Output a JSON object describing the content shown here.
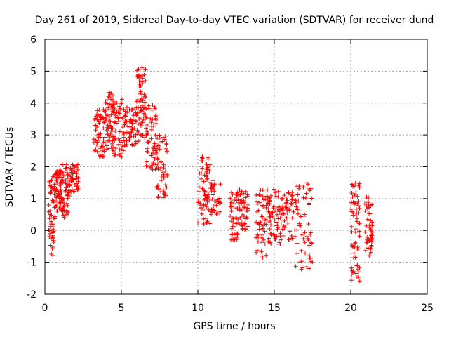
{
  "chart_data": {
    "type": "scatter",
    "title": "Day 261 of 2019, Sidereal Day-to-day VTEC variation (SDTVAR) for receiver dund",
    "xlabel": "GPS time / hours",
    "ylabel": "SDTVAR / TECUs",
    "xlim": [
      0,
      25
    ],
    "ylim": [
      -2,
      6
    ],
    "x_ticks": [
      0,
      5,
      10,
      15,
      20,
      25
    ],
    "y_ticks": [
      -2,
      -1,
      0,
      1,
      2,
      3,
      4,
      5,
      6
    ],
    "grid": true,
    "marker": "plus",
    "color": "#ff0000",
    "clusters": [
      {
        "x0": 0.25,
        "x1": 0.65,
        "lo": -0.8,
        "hi": 1.7,
        "n": 60
      },
      {
        "x0": 0.6,
        "x1": 1.2,
        "lo": 0.6,
        "hi": 1.9,
        "n": 70
      },
      {
        "x0": 1.1,
        "x1": 1.6,
        "lo": 0.4,
        "hi": 2.1,
        "n": 60
      },
      {
        "x0": 1.6,
        "x1": 2.2,
        "lo": 1.2,
        "hi": 2.1,
        "n": 50
      },
      {
        "x0": 3.2,
        "x1": 3.9,
        "lo": 2.3,
        "hi": 3.8,
        "n": 60
      },
      {
        "x0": 3.9,
        "x1": 4.5,
        "lo": 2.5,
        "hi": 4.4,
        "n": 70
      },
      {
        "x0": 4.5,
        "x1": 5.2,
        "lo": 2.3,
        "hi": 4.2,
        "n": 60
      },
      {
        "x0": 5.2,
        "x1": 6.0,
        "lo": 2.6,
        "hi": 3.9,
        "n": 60
      },
      {
        "x0": 6.0,
        "x1": 6.6,
        "lo": 2.8,
        "hi": 5.2,
        "n": 70
      },
      {
        "x0": 6.6,
        "x1": 7.3,
        "lo": 1.9,
        "hi": 4.0,
        "n": 60
      },
      {
        "x0": 7.3,
        "x1": 8.0,
        "lo": 1.0,
        "hi": 3.0,
        "n": 60
      },
      {
        "x0": 10.0,
        "x1": 10.8,
        "lo": 0.2,
        "hi": 2.5,
        "n": 70
      },
      {
        "x0": 10.8,
        "x1": 11.5,
        "lo": 0.5,
        "hi": 1.6,
        "n": 40
      },
      {
        "x0": 12.1,
        "x1": 12.7,
        "lo": -0.3,
        "hi": 1.2,
        "n": 50
      },
      {
        "x0": 12.7,
        "x1": 13.3,
        "lo": 0.0,
        "hi": 1.3,
        "n": 50
      },
      {
        "x0": 13.8,
        "x1": 14.6,
        "lo": -0.9,
        "hi": 1.4,
        "n": 60
      },
      {
        "x0": 14.6,
        "x1": 15.4,
        "lo": -0.6,
        "hi": 1.3,
        "n": 60
      },
      {
        "x0": 15.4,
        "x1": 16.4,
        "lo": -0.3,
        "hi": 1.2,
        "n": 60
      },
      {
        "x0": 16.4,
        "x1": 17.5,
        "lo": -1.3,
        "hi": 1.5,
        "n": 60
      },
      {
        "x0": 20.0,
        "x1": 20.6,
        "lo": -1.6,
        "hi": 1.5,
        "n": 70
      },
      {
        "x0": 20.9,
        "x1": 21.4,
        "lo": -0.8,
        "hi": 1.1,
        "n": 50
      }
    ]
  }
}
